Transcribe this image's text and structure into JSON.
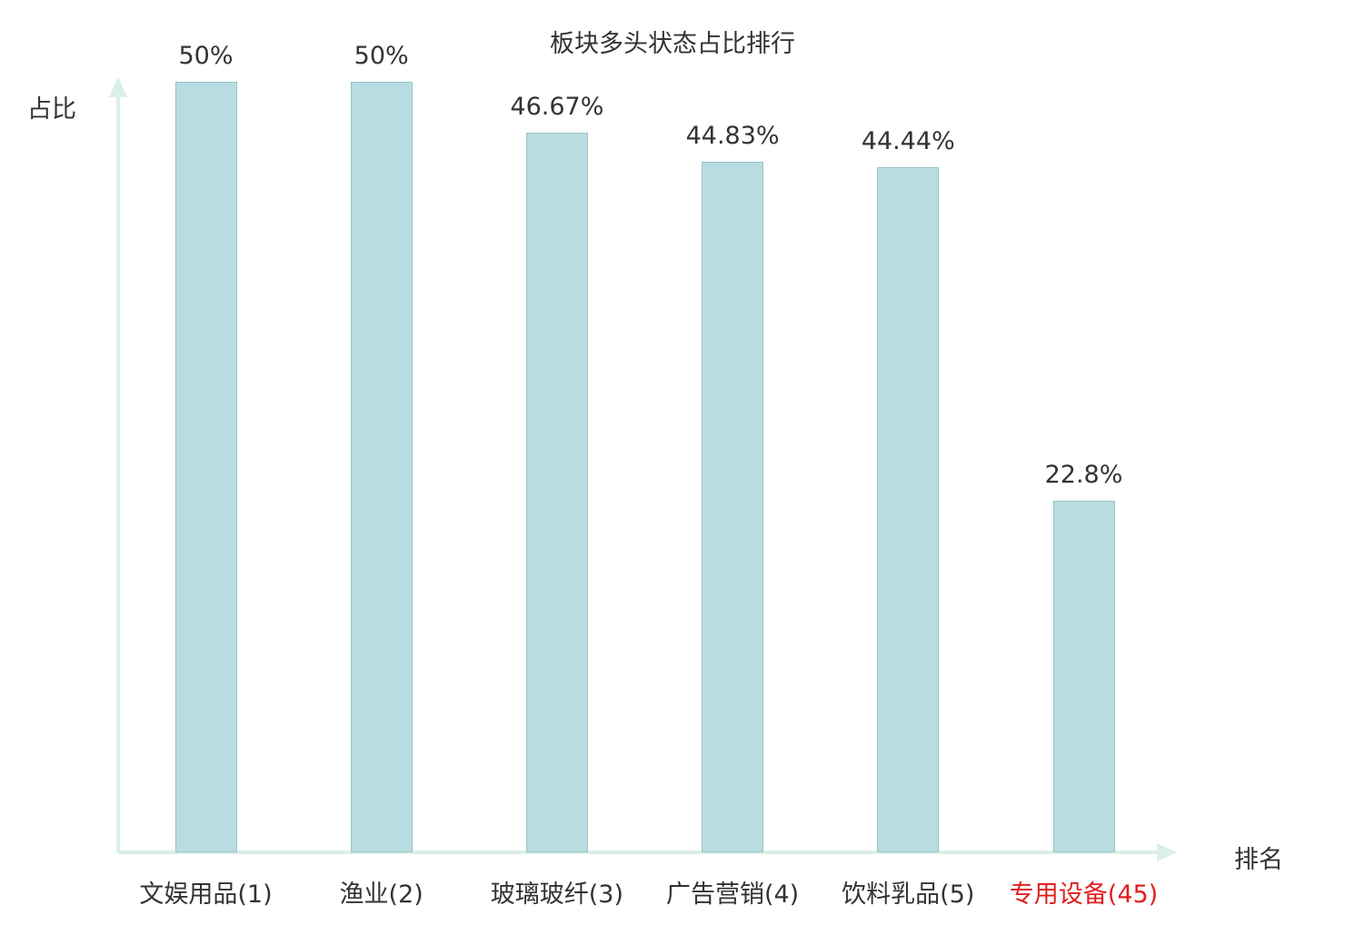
{
  "colors": {
    "bar_fill": "#b9dce1",
    "bar_border": "#96c4cb",
    "axis": "#d9efe8",
    "text": "#333333",
    "highlight": "#e01f1f"
  },
  "chart_data": {
    "type": "bar",
    "title": "板块多头状态占比排行",
    "xlabel": "排名",
    "ylabel": "占比",
    "categories": [
      "文娱用品(1)",
      "渔业(2)",
      "玻璃玻纤(3)",
      "广告营销(4)",
      "饮料乳品(5)",
      "专用设备(45)"
    ],
    "values": [
      50,
      50,
      46.67,
      44.83,
      44.44,
      22.8
    ],
    "value_labels": [
      "50%",
      "50%",
      "46.67%",
      "44.83%",
      "44.44%",
      "22.8%"
    ],
    "category_colors": [
      "#333333",
      "#333333",
      "#333333",
      "#333333",
      "#333333",
      "#e01f1f"
    ],
    "ylim": [
      0,
      50
    ],
    "grid": false,
    "legend": false,
    "bar_color": "#b9dce1",
    "highlighted_category_index": 5
  }
}
